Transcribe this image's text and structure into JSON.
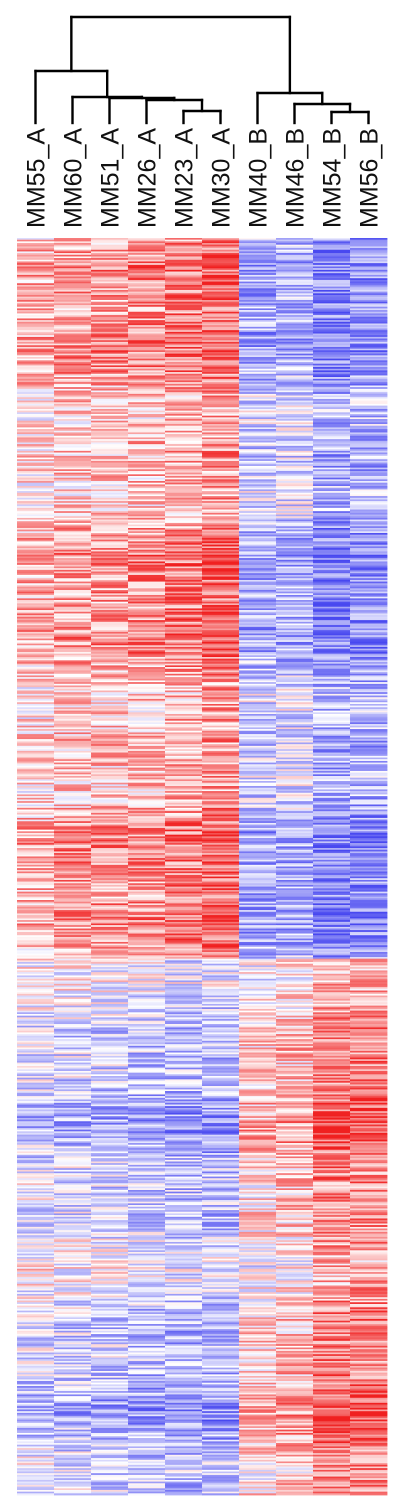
{
  "chart_data": {
    "type": "heatmap",
    "title": "",
    "columns": [
      "MM55_A",
      "MM60_A",
      "MM51_A",
      "MM26_A",
      "MM23_A",
      "MM30_A",
      "MM40_B",
      "MM46_B",
      "MM54_B",
      "MM56_B"
    ],
    "groups": [
      {
        "label": "A",
        "members": [
          "MM55_A",
          "MM60_A",
          "MM51_A",
          "MM26_A",
          "MM23_A",
          "MM30_A"
        ]
      },
      {
        "label": "B",
        "members": [
          "MM40_B",
          "MM46_B",
          "MM54_B",
          "MM56_B"
        ]
      }
    ],
    "dendrogram": {
      "type": "hierarchical-clustering",
      "merges": [
        {
          "id": 10,
          "left": 4,
          "right": 5
        },
        {
          "id": 11,
          "left": 3,
          "right": 10
        },
        {
          "id": 12,
          "left": 2,
          "right": 11
        },
        {
          "id": 13,
          "left": 1,
          "right": 12
        },
        {
          "id": 14,
          "left": 0,
          "right": 13
        },
        {
          "id": 15,
          "left": 8,
          "right": 9
        },
        {
          "id": 16,
          "left": 7,
          "right": 15
        },
        {
          "id": 17,
          "left": 6,
          "right": 16
        },
        {
          "id": 18,
          "left": 14,
          "right": 17
        }
      ]
    },
    "color_scale": {
      "low": "#4848f0",
      "mid": "#ffffff",
      "high": "#f02020",
      "range": [
        -1,
        1
      ]
    },
    "row_blocks": [
      {
        "rows": 430,
        "description": "up in A, down in B",
        "values": [
          0.25,
          0.35,
          0.35,
          0.4,
          0.45,
          0.55,
          -0.35,
          -0.3,
          -0.55,
          -0.5
        ]
      },
      {
        "rows": 320,
        "description": "down in A, up in B",
        "values": [
          -0.15,
          -0.2,
          -0.25,
          -0.3,
          -0.35,
          -0.35,
          0.15,
          0.25,
          0.55,
          0.55
        ]
      }
    ]
  }
}
